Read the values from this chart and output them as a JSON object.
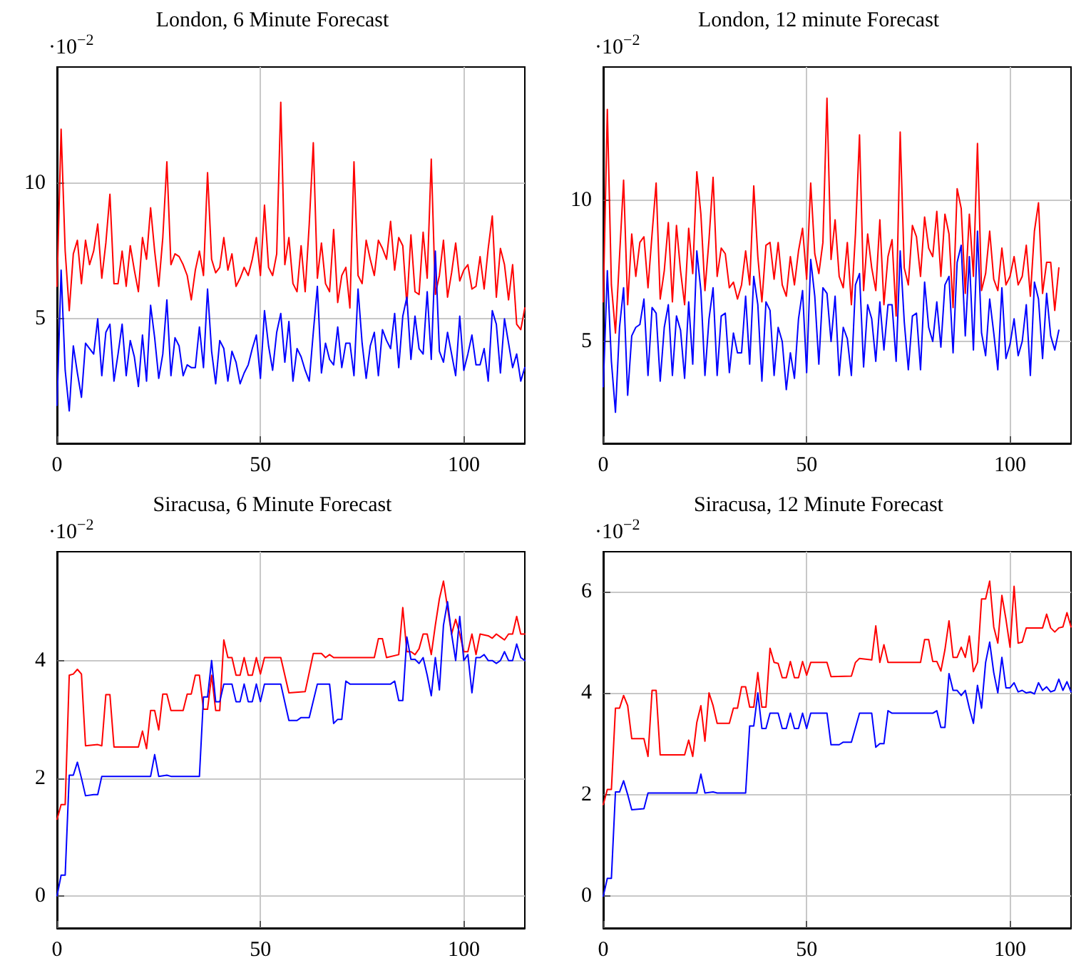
{
  "chart_data": [
    {
      "type": "line",
      "title": "London, 6 Minute Forecast",
      "annotations": [
        "·10$^{−2}$"
      ],
      "xlim": [
        0,
        115
      ],
      "xticks": [
        0,
        50,
        100
      ],
      "ylim": [
        0.4,
        14.3
      ],
      "yticks": [
        5,
        10
      ],
      "grid": true,
      "marker": "none",
      "line_style": "solid",
      "x": [
        0,
        1,
        2,
        3,
        4,
        5,
        6,
        7,
        8,
        9,
        10,
        11,
        12,
        13,
        14,
        15,
        16,
        17,
        18,
        19,
        20,
        21,
        22,
        23,
        24,
        25,
        26,
        27,
        28,
        29,
        30,
        31,
        32,
        33,
        34,
        35,
        36,
        37,
        38,
        39,
        40,
        41,
        42,
        43,
        44,
        45,
        46,
        47,
        48,
        49,
        50,
        51,
        52,
        53,
        54,
        55,
        56,
        57,
        58,
        59,
        60,
        61,
        62,
        63,
        64,
        65,
        66,
        67,
        68,
        69,
        70,
        71,
        72,
        73,
        74,
        75,
        76,
        77,
        78,
        79,
        80,
        81,
        82,
        83,
        84,
        85,
        86,
        87,
        88,
        89,
        90,
        91,
        92,
        93,
        94,
        95,
        96,
        97,
        98,
        99,
        100,
        101,
        102,
        103,
        104,
        105,
        106,
        107,
        108,
        109,
        110,
        111,
        112,
        113,
        114,
        115
      ],
      "series": [
        {
          "color": "#ff0000",
          "values": [
            6.2,
            12.0,
            7.5,
            5.3,
            7.4,
            7.9,
            6.3,
            7.9,
            7.0,
            7.5,
            8.5,
            6.5,
            7.8,
            9.6,
            6.3,
            6.3,
            7.5,
            6.2,
            7.7,
            6.8,
            6.0,
            8.0,
            7.2,
            9.1,
            7.5,
            6.2,
            8.0,
            10.8,
            7.0,
            7.4,
            7.3,
            7.0,
            6.6,
            5.7,
            6.8,
            7.5,
            6.6,
            10.4,
            7.2,
            6.7,
            6.9,
            8.0,
            6.8,
            7.4,
            6.2,
            6.5,
            6.9,
            6.6,
            7.2,
            8.0,
            6.6,
            9.2,
            6.9,
            6.6,
            7.4,
            13.0,
            7.0,
            8.0,
            6.3,
            6.0,
            7.7,
            6.0,
            8.5,
            11.5,
            6.5,
            7.8,
            6.3,
            6.0,
            8.3,
            5.6,
            6.6,
            6.9,
            5.4,
            10.8,
            6.6,
            6.3,
            7.9,
            7.2,
            6.6,
            7.9,
            7.6,
            7.2,
            8.6,
            6.8,
            8.0,
            7.7,
            5.5,
            8.1,
            6.0,
            5.9,
            8.2,
            6.5,
            10.9,
            5.9,
            6.6,
            7.9,
            5.8,
            6.7,
            7.8,
            6.4,
            6.8,
            7.0,
            6.1,
            6.2,
            7.3,
            6.1,
            7.6,
            8.8,
            5.8,
            7.6,
            7.0,
            5.7,
            7.0,
            4.8,
            4.6,
            5.4
          ]
        },
        {
          "color": "#0000ff",
          "values": [
            1.8,
            6.8,
            3.1,
            1.6,
            4.0,
            3.0,
            2.1,
            4.1,
            3.9,
            3.7,
            5.0,
            2.9,
            4.5,
            4.8,
            2.7,
            3.7,
            4.8,
            2.9,
            4.2,
            3.6,
            2.5,
            4.4,
            2.7,
            5.5,
            4.3,
            2.8,
            3.7,
            5.7,
            2.9,
            4.3,
            4.0,
            2.9,
            3.3,
            3.2,
            3.2,
            4.7,
            3.2,
            6.1,
            3.8,
            2.6,
            4.2,
            3.9,
            2.7,
            3.8,
            3.4,
            2.6,
            3.0,
            3.3,
            3.9,
            4.4,
            2.8,
            5.3,
            4.0,
            3.1,
            4.5,
            5.2,
            3.4,
            4.9,
            2.7,
            3.9,
            3.6,
            3.1,
            2.7,
            4.5,
            6.2,
            3.0,
            4.1,
            3.5,
            3.3,
            4.7,
            3.2,
            4.1,
            4.1,
            2.9,
            6.1,
            4.1,
            2.8,
            4.0,
            4.5,
            2.9,
            4.6,
            4.2,
            3.9,
            5.2,
            3.2,
            5.1,
            5.8,
            3.5,
            5.1,
            3.9,
            3.7,
            6.0,
            3.5,
            7.5,
            3.8,
            3.4,
            4.5,
            3.7,
            2.9,
            5.1,
            3.1,
            3.7,
            4.4,
            3.3,
            3.3,
            3.9,
            2.7,
            5.3,
            4.8,
            3.0,
            5.0,
            4.1,
            3.2,
            3.7,
            2.7,
            3.2
          ]
        }
      ]
    },
    {
      "type": "line",
      "title": "London, 12 minute Forecast",
      "annotations": [
        "·10$^{−2}$"
      ],
      "xlim": [
        0,
        115
      ],
      "xticks": [
        0,
        50,
        100
      ],
      "ylim": [
        1.4,
        14.7
      ],
      "yticks": [
        5,
        10
      ],
      "grid": true,
      "marker": "none",
      "line_style": "solid",
      "x": [
        0,
        1,
        2,
        3,
        4,
        5,
        6,
        7,
        8,
        9,
        10,
        11,
        12,
        13,
        14,
        15,
        16,
        17,
        18,
        19,
        20,
        21,
        22,
        23,
        24,
        25,
        26,
        27,
        28,
        29,
        30,
        31,
        32,
        33,
        34,
        35,
        36,
        37,
        38,
        39,
        40,
        41,
        42,
        43,
        44,
        45,
        46,
        47,
        48,
        49,
        50,
        51,
        52,
        53,
        54,
        55,
        56,
        57,
        58,
        59,
        60,
        61,
        62,
        63,
        64,
        65,
        66,
        67,
        68,
        69,
        70,
        71,
        72,
        73,
        74,
        75,
        76,
        77,
        78,
        79,
        80,
        81,
        82,
        83,
        84,
        85,
        86,
        87,
        88,
        89,
        90,
        91,
        92,
        93,
        94,
        95,
        96,
        97,
        98,
        99,
        100,
        101,
        102,
        103,
        104,
        105,
        106,
        107,
        108,
        109,
        110,
        111,
        112
      ],
      "series": [
        {
          "color": "#ff0000",
          "values": [
            6.4,
            13.2,
            7.0,
            5.3,
            8.0,
            10.7,
            6.3,
            8.8,
            7.3,
            8.5,
            8.7,
            6.9,
            8.8,
            10.6,
            6.5,
            7.5,
            9.2,
            6.4,
            9.1,
            7.5,
            6.3,
            9.0,
            7.4,
            11.0,
            9.5,
            6.8,
            8.6,
            10.8,
            7.3,
            8.3,
            8.1,
            6.9,
            7.1,
            6.5,
            7.0,
            8.2,
            7.0,
            10.5,
            8.0,
            6.4,
            8.4,
            8.5,
            7.2,
            8.5,
            7.0,
            6.6,
            8.0,
            7.0,
            8.2,
            9.0,
            7.2,
            10.6,
            8.1,
            7.4,
            8.5,
            13.6,
            7.9,
            9.3,
            7.3,
            6.9,
            8.5,
            6.3,
            8.8,
            12.3,
            6.8,
            8.8,
            7.6,
            6.8,
            9.3,
            6.3,
            8.0,
            8.6,
            5.9,
            12.4,
            7.6,
            7.0,
            9.1,
            8.7,
            7.3,
            9.4,
            8.3,
            8.0,
            9.6,
            7.3,
            9.5,
            8.8,
            6.2,
            10.4,
            9.7,
            6.7,
            9.5,
            7.3,
            12.0,
            6.8,
            7.4,
            8.9,
            7.2,
            6.8,
            8.3,
            7.0,
            7.3,
            8.0,
            7.0,
            7.3,
            8.4,
            6.6,
            8.9,
            9.9,
            6.7,
            7.8,
            7.8,
            6.1,
            7.6
          ]
        },
        {
          "color": "#0000ff",
          "values": [
            3.4,
            7.5,
            4.3,
            2.5,
            5.5,
            6.9,
            3.1,
            5.2,
            5.5,
            5.6,
            6.5,
            3.8,
            6.2,
            6.0,
            3.6,
            5.5,
            6.3,
            3.8,
            5.9,
            5.4,
            3.7,
            6.4,
            4.2,
            8.2,
            6.8,
            3.8,
            5.8,
            6.9,
            3.8,
            5.9,
            6.0,
            3.9,
            5.3,
            4.6,
            4.6,
            6.6,
            4.2,
            7.3,
            6.3,
            3.6,
            6.4,
            6.1,
            3.8,
            5.5,
            5.0,
            3.3,
            4.6,
            3.7,
            5.8,
            6.8,
            3.9,
            7.9,
            6.6,
            4.2,
            6.9,
            6.7,
            5.0,
            6.6,
            3.8,
            5.5,
            5.1,
            3.8,
            7.0,
            7.4,
            4.1,
            6.3,
            5.8,
            4.3,
            6.4,
            4.7,
            6.3,
            6.3,
            4.3,
            8.2,
            5.7,
            4.0,
            5.9,
            6.0,
            4.0,
            7.1,
            5.5,
            5.0,
            6.4,
            4.8,
            7.0,
            7.3,
            4.6,
            7.8,
            8.4,
            5.2,
            8.0,
            4.7,
            8.9,
            5.3,
            4.5,
            6.5,
            5.3,
            4.0,
            6.9,
            4.4,
            4.9,
            5.8,
            4.5,
            5.0,
            6.3,
            3.8,
            7.1,
            6.5,
            4.4,
            6.7,
            5.2,
            4.7,
            5.4
          ]
        }
      ]
    },
    {
      "type": "line",
      "title": "Siracusa, 6 Minute Forecast",
      "annotations": [
        "·10$^{−2}$"
      ],
      "xlim": [
        0,
        115
      ],
      "xticks": [
        0,
        50,
        100
      ],
      "ylim": [
        -0.55,
        5.85
      ],
      "yticks": [
        0,
        2,
        4
      ],
      "grid": true,
      "marker": "none",
      "line_style": "solid",
      "series": [
        {
          "color": "#ff0000",
          "x": [
            0,
            1,
            2,
            3,
            4,
            5,
            6,
            7,
            10,
            11,
            12,
            13,
            14,
            20,
            21,
            22,
            23,
            24,
            25,
            26,
            27,
            28,
            31,
            32,
            33,
            34,
            35,
            36,
            37,
            38,
            39,
            40,
            41,
            42,
            43,
            44,
            45,
            46,
            47,
            48,
            49,
            50,
            51,
            55,
            57,
            61,
            63,
            65,
            66,
            67,
            68,
            78,
            79,
            80,
            81,
            84,
            85,
            86,
            87,
            88,
            89,
            90,
            91,
            92,
            93,
            94,
            95,
            96,
            97,
            98,
            99,
            100,
            101,
            102,
            103,
            104,
            106,
            107,
            108,
            109,
            110,
            111,
            112,
            113,
            114,
            115
          ],
          "values": [
            1.3,
            1.55,
            1.55,
            3.75,
            3.77,
            3.85,
            3.77,
            2.55,
            2.57,
            2.55,
            3.42,
            3.42,
            2.53,
            2.53,
            2.8,
            2.5,
            3.15,
            3.15,
            2.82,
            3.43,
            3.43,
            3.15,
            3.15,
            3.43,
            3.43,
            3.75,
            3.75,
            3.17,
            3.17,
            3.75,
            3.15,
            3.15,
            4.35,
            4.05,
            4.05,
            3.75,
            3.75,
            4.05,
            3.75,
            3.75,
            4.05,
            3.77,
            4.05,
            4.05,
            3.45,
            3.47,
            4.12,
            4.12,
            4.05,
            4.1,
            4.05,
            4.05,
            4.37,
            4.37,
            4.05,
            4.1,
            4.9,
            4.15,
            4.15,
            4.1,
            4.2,
            4.45,
            4.45,
            4.1,
            4.6,
            5.05,
            5.35,
            4.9,
            4.45,
            4.7,
            4.45,
            4.15,
            4.15,
            4.45,
            4.1,
            4.45,
            4.42,
            4.38,
            4.45,
            4.4,
            4.35,
            4.45,
            4.45,
            4.75,
            4.45,
            4.45
          ]
        },
        {
          "color": "#0000ff",
          "x": [
            0,
            1,
            2,
            3,
            4,
            5,
            6,
            7,
            9,
            10,
            11,
            23,
            24,
            25,
            27,
            28,
            35,
            36,
            37,
            38,
            39,
            40,
            41,
            43,
            44,
            45,
            46,
            47,
            48,
            49,
            50,
            51,
            55,
            57,
            59,
            60,
            62,
            64,
            67,
            68,
            69,
            70,
            71,
            72,
            82,
            83,
            84,
            85,
            86,
            87,
            88,
            89,
            90,
            91,
            92,
            93,
            94,
            95,
            96,
            97,
            98,
            99,
            100,
            101,
            102,
            103,
            104,
            105,
            106,
            107,
            108,
            109,
            110,
            111,
            112,
            113,
            114,
            115
          ],
          "values": [
            0,
            0.35,
            0.35,
            2.05,
            2.05,
            2.27,
            2.0,
            1.7,
            1.72,
            1.72,
            2.03,
            2.03,
            2.4,
            2.03,
            2.05,
            2.03,
            2.03,
            3.38,
            3.38,
            4.0,
            3.3,
            3.3,
            3.6,
            3.6,
            3.3,
            3.3,
            3.6,
            3.3,
            3.3,
            3.6,
            3.3,
            3.6,
            3.6,
            2.98,
            2.98,
            3.03,
            3.03,
            3.6,
            3.6,
            2.93,
            3.0,
            3.0,
            3.65,
            3.6,
            3.6,
            3.65,
            3.32,
            3.32,
            4.4,
            4.02,
            4.02,
            3.95,
            4.05,
            3.75,
            3.4,
            4.05,
            3.5,
            4.6,
            5.0,
            4.45,
            4.0,
            4.75,
            4.0,
            4.1,
            3.45,
            4.05,
            4.05,
            4.1,
            4.0,
            4.0,
            3.95,
            4.0,
            4.15,
            4.0,
            4.0,
            4.28,
            4.05,
            4.0
          ]
        }
      ]
    },
    {
      "type": "line",
      "title": "Siracusa, 12 Minute Forecast",
      "annotations": [
        "·10$^{−2}$"
      ],
      "xlim": [
        0,
        115
      ],
      "xticks": [
        0,
        50,
        100
      ],
      "ylim": [
        -0.63,
        6.78
      ],
      "yticks": [
        0,
        2,
        4,
        6
      ],
      "grid": true,
      "marker": "none",
      "line_style": "solid",
      "series": [
        {
          "color": "#ff0000",
          "x": [
            0,
            1,
            2,
            3,
            4,
            5,
            6,
            7,
            10,
            11,
            12,
            13,
            14,
            20,
            21,
            22,
            23,
            24,
            25,
            26,
            27,
            28,
            31,
            32,
            33,
            34,
            35,
            36,
            37,
            38,
            39,
            40,
            41,
            42,
            43,
            44,
            45,
            46,
            47,
            48,
            49,
            50,
            51,
            55,
            56,
            61,
            62,
            63,
            66,
            67,
            68,
            69,
            70,
            78,
            79,
            80,
            81,
            82,
            83,
            84,
            85,
            86,
            87,
            88,
            89,
            90,
            91,
            92,
            93,
            94,
            95,
            96,
            97,
            98,
            99,
            100,
            101,
            102,
            103,
            104,
            108,
            109,
            110,
            111,
            112,
            113,
            114,
            115
          ],
          "values": [
            1.8,
            2.1,
            2.1,
            3.7,
            3.7,
            3.95,
            3.75,
            3.1,
            3.1,
            2.75,
            4.05,
            4.05,
            2.78,
            2.78,
            3.07,
            2.75,
            3.42,
            3.75,
            3.05,
            4.0,
            3.75,
            3.4,
            3.4,
            3.7,
            3.7,
            4.12,
            4.12,
            3.72,
            3.72,
            4.4,
            3.72,
            3.72,
            4.88,
            4.6,
            4.58,
            4.3,
            4.3,
            4.62,
            4.3,
            4.3,
            4.62,
            4.35,
            4.6,
            4.6,
            4.32,
            4.33,
            4.6,
            4.68,
            4.65,
            5.32,
            4.6,
            4.95,
            4.6,
            4.6,
            5.05,
            5.05,
            4.62,
            4.62,
            4.43,
            4.85,
            5.42,
            4.7,
            4.7,
            4.9,
            4.7,
            5.12,
            4.42,
            4.6,
            5.85,
            5.85,
            6.2,
            5.3,
            4.98,
            5.92,
            5.45,
            4.9,
            6.1,
            4.98,
            5.0,
            5.28,
            5.28,
            5.55,
            5.28,
            5.2,
            5.28,
            5.3,
            5.58,
            5.3
          ]
        },
        {
          "color": "#0000ff",
          "x": [
            0,
            1,
            2,
            3,
            4,
            5,
            6,
            7,
            10,
            11,
            23,
            24,
            25,
            27,
            28,
            35,
            36,
            37,
            38,
            39,
            40,
            41,
            43,
            44,
            45,
            46,
            47,
            48,
            49,
            50,
            51,
            55,
            56,
            58,
            59,
            61,
            63,
            66,
            67,
            68,
            69,
            70,
            71,
            81,
            82,
            83,
            84,
            85,
            86,
            87,
            88,
            89,
            90,
            91,
            92,
            93,
            94,
            95,
            96,
            97,
            98,
            99,
            100,
            101,
            102,
            103,
            104,
            105,
            106,
            107,
            108,
            109,
            110,
            111,
            112,
            113,
            114,
            115
          ],
          "values": [
            0,
            0.35,
            0.35,
            2.05,
            2.05,
            2.27,
            2.0,
            1.7,
            1.72,
            2.03,
            2.03,
            2.4,
            2.03,
            2.05,
            2.03,
            2.03,
            3.35,
            3.35,
            4.0,
            3.3,
            3.3,
            3.6,
            3.6,
            3.3,
            3.3,
            3.6,
            3.3,
            3.3,
            3.6,
            3.3,
            3.6,
            3.6,
            2.98,
            2.98,
            3.03,
            3.03,
            3.6,
            3.6,
            2.93,
            3.0,
            3.0,
            3.65,
            3.6,
            3.6,
            3.65,
            3.32,
            3.32,
            4.38,
            4.05,
            4.05,
            3.95,
            4.05,
            3.7,
            3.4,
            4.15,
            3.7,
            4.6,
            5.0,
            4.4,
            4.0,
            4.7,
            4.1,
            4.1,
            4.2,
            4.02,
            4.05,
            4.0,
            4.02,
            3.98,
            4.2,
            4.05,
            4.12,
            4.02,
            4.05,
            4.27,
            4.05,
            4.22,
            4.02
          ]
        }
      ]
    }
  ]
}
